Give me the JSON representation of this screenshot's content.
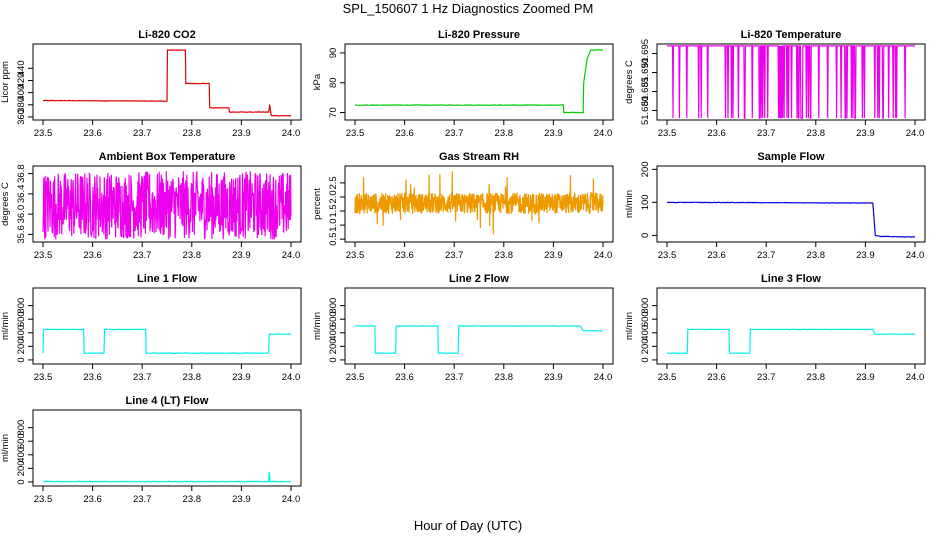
{
  "figure": {
    "title": "SPL_150607  1 Hz Diagnostics Zoomed PM",
    "xlabel": "Hour of Day (UTC)"
  },
  "chart_data": [
    {
      "type": "line",
      "title": "Li-820 CO2",
      "ylabel": "Licor ppm",
      "color": "#dd0000",
      "xlim": [
        23.5,
        24.0
      ],
      "ylim": [
        355,
        480
      ],
      "x_ticks": [
        "23.5",
        "23.6",
        "23.7",
        "23.8",
        "23.9",
        "24.0"
      ],
      "y_ticks": [
        360,
        380,
        400,
        420,
        440
      ],
      "series": [
        {
          "x": [
            23.5,
            23.75,
            23.751,
            23.787,
            23.788,
            23.835,
            23.836,
            23.875,
            23.876,
            23.955,
            23.957,
            23.96,
            23.962,
            24.0
          ],
          "y": [
            387,
            386,
            470,
            470,
            415,
            415,
            375,
            375,
            368,
            368,
            380,
            363,
            362,
            362
          ]
        }
      ]
    },
    {
      "type": "line",
      "title": "Li-820 Pressure",
      "ylabel": "kPa",
      "color": "#00cc00",
      "xlim": [
        23.5,
        24.0
      ],
      "ylim": [
        67.5,
        93
      ],
      "x_ticks": [
        "23.5",
        "23.6",
        "23.7",
        "23.8",
        "23.9",
        "24.0"
      ],
      "y_ticks": [
        70,
        80,
        90
      ],
      "series": [
        {
          "x": [
            23.5,
            23.92,
            23.921,
            23.96,
            23.961,
            23.968,
            23.975,
            24.0
          ],
          "y": [
            72.5,
            72.5,
            70,
            70,
            80,
            88,
            91,
            91
          ]
        }
      ]
    },
    {
      "type": "line",
      "title": "Li-820 Temperature",
      "ylabel": "degrees C",
      "color": "#ee00ee",
      "xlim": [
        23.5,
        24.0
      ],
      "ylim": [
        51.6775,
        51.6975
      ],
      "x_ticks": [
        "23.5",
        "23.6",
        "23.7",
        "23.8",
        "23.9",
        "24.0"
      ],
      "y_ticks": [
        "51.680",
        "51.685",
        "51.690",
        "51.695"
      ],
      "values_high": 51.697,
      "values_low": 51.678
    },
    {
      "type": "line",
      "title": "Ambient Box Temperature",
      "ylabel": "degrees C",
      "color": "#ee00ee",
      "xlim": [
        23.5,
        24.0
      ],
      "ylim": [
        35.45,
        36.95
      ],
      "x_ticks": [
        "23.5",
        "23.6",
        "23.7",
        "23.8",
        "23.9",
        "24.0"
      ],
      "y_ticks": [
        "35.6",
        "36.0",
        "36.4",
        "36.8"
      ],
      "range": [
        35.5,
        36.85
      ]
    },
    {
      "type": "line",
      "title": "Gas Stream RH",
      "ylabel": "percent",
      "color": "#ee9900",
      "xlim": [
        23.5,
        24.0
      ],
      "ylim": [
        0.4,
        3.1
      ],
      "x_ticks": [
        "23.5",
        "23.6",
        "23.7",
        "23.8",
        "23.9",
        "24.0"
      ],
      "y_ticks": [
        "0.5",
        "1.0",
        "1.5",
        "2.0",
        "2.5"
      ],
      "band": [
        1.4,
        2.15
      ]
    },
    {
      "type": "line",
      "title": "Sample Flow",
      "ylabel": "ml/min",
      "color": "#0000dd",
      "xlim": [
        23.5,
        24.0
      ],
      "ylim": [
        -20,
        210
      ],
      "x_ticks": [
        "23.5",
        "23.6",
        "23.7",
        "23.8",
        "23.9",
        "24.0"
      ],
      "y_ticks": [
        0,
        100,
        200
      ],
      "series": [
        {
          "x": [
            23.5,
            23.915,
            23.92,
            23.93,
            24.0
          ],
          "y": [
            100,
            98,
            0,
            -3,
            -5
          ]
        }
      ]
    },
    {
      "type": "line",
      "title": "Line 1 Flow",
      "ylabel": "ml/min",
      "color": "#00eeee",
      "xlim": [
        23.5,
        24.0
      ],
      "ylim": [
        -60,
        1060
      ],
      "x_ticks": [
        "23.5",
        "23.6",
        "23.7",
        "23.8",
        "23.9",
        "24.0"
      ],
      "y_ticks": [
        0,
        200,
        400,
        600,
        800
      ],
      "series": [
        {
          "x": [
            23.5,
            23.501,
            23.582,
            23.583,
            23.623,
            23.624,
            23.707,
            23.708,
            23.955,
            23.956,
            24.0
          ],
          "y": [
            100,
            450,
            450,
            100,
            100,
            450,
            450,
            100,
            100,
            380,
            380
          ]
        }
      ]
    },
    {
      "type": "line",
      "title": "Line 2 Flow",
      "ylabel": "ml/min",
      "color": "#00eeee",
      "xlim": [
        23.5,
        24.0
      ],
      "ylim": [
        -60,
        1060
      ],
      "x_ticks": [
        "23.5",
        "23.6",
        "23.7",
        "23.8",
        "23.9",
        "24.0"
      ],
      "y_ticks": [
        0,
        200,
        400,
        600,
        800
      ],
      "series": [
        {
          "x": [
            23.5,
            23.54,
            23.541,
            23.582,
            23.583,
            23.667,
            23.668,
            23.708,
            23.709,
            23.955,
            23.96,
            24.0
          ],
          "y": [
            500,
            500,
            100,
            100,
            500,
            500,
            100,
            100,
            500,
            500,
            430,
            430
          ]
        }
      ]
    },
    {
      "type": "line",
      "title": "Line 3 Flow",
      "ylabel": "ml/min",
      "color": "#00eeee",
      "xlim": [
        23.5,
        24.0
      ],
      "ylim": [
        -60,
        1060
      ],
      "x_ticks": [
        "23.5",
        "23.6",
        "23.7",
        "23.8",
        "23.9",
        "24.0"
      ],
      "y_ticks": [
        0,
        200,
        400,
        600,
        800
      ],
      "series": [
        {
          "x": [
            23.5,
            23.501,
            23.541,
            23.542,
            23.625,
            23.626,
            23.667,
            23.668,
            23.915,
            23.92,
            24.0
          ],
          "y": [
            100,
            100,
            100,
            450,
            450,
            100,
            100,
            450,
            450,
            380,
            380
          ]
        }
      ]
    },
    {
      "type": "line",
      "title": "Line 4 (LT) Flow",
      "ylabel": "ml/min",
      "color": "#00eeee",
      "xlim": [
        23.5,
        24.0
      ],
      "ylim": [
        -60,
        1060
      ],
      "x_ticks": [
        "23.5",
        "23.6",
        "23.7",
        "23.8",
        "23.9",
        "24.0"
      ],
      "y_ticks": [
        0,
        200,
        400,
        600,
        800
      ],
      "series": [
        {
          "x": [
            23.5,
            23.955,
            23.956,
            23.958,
            23.96,
            24.0
          ],
          "y": [
            5,
            5,
            150,
            5,
            5,
            5
          ]
        }
      ]
    }
  ]
}
